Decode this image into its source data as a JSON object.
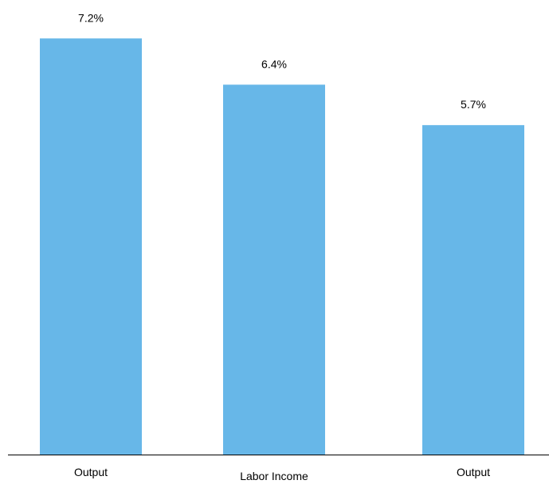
{
  "colors": {
    "bar": "#67b7e8",
    "axis": "#000000",
    "text": "#000000",
    "background": "#ffffff"
  },
  "chart_data": {
    "type": "bar",
    "categories": [
      "Output",
      "Labor Income",
      "Output"
    ],
    "values": [
      7.2,
      6.4,
      5.7
    ],
    "data_labels": [
      "7.2%",
      "6.4%",
      "5.7%"
    ],
    "unit": "%",
    "title": "",
    "xlabel": "",
    "ylabel": "",
    "ylim": [
      0,
      8
    ],
    "grid": false,
    "legend": "none"
  }
}
